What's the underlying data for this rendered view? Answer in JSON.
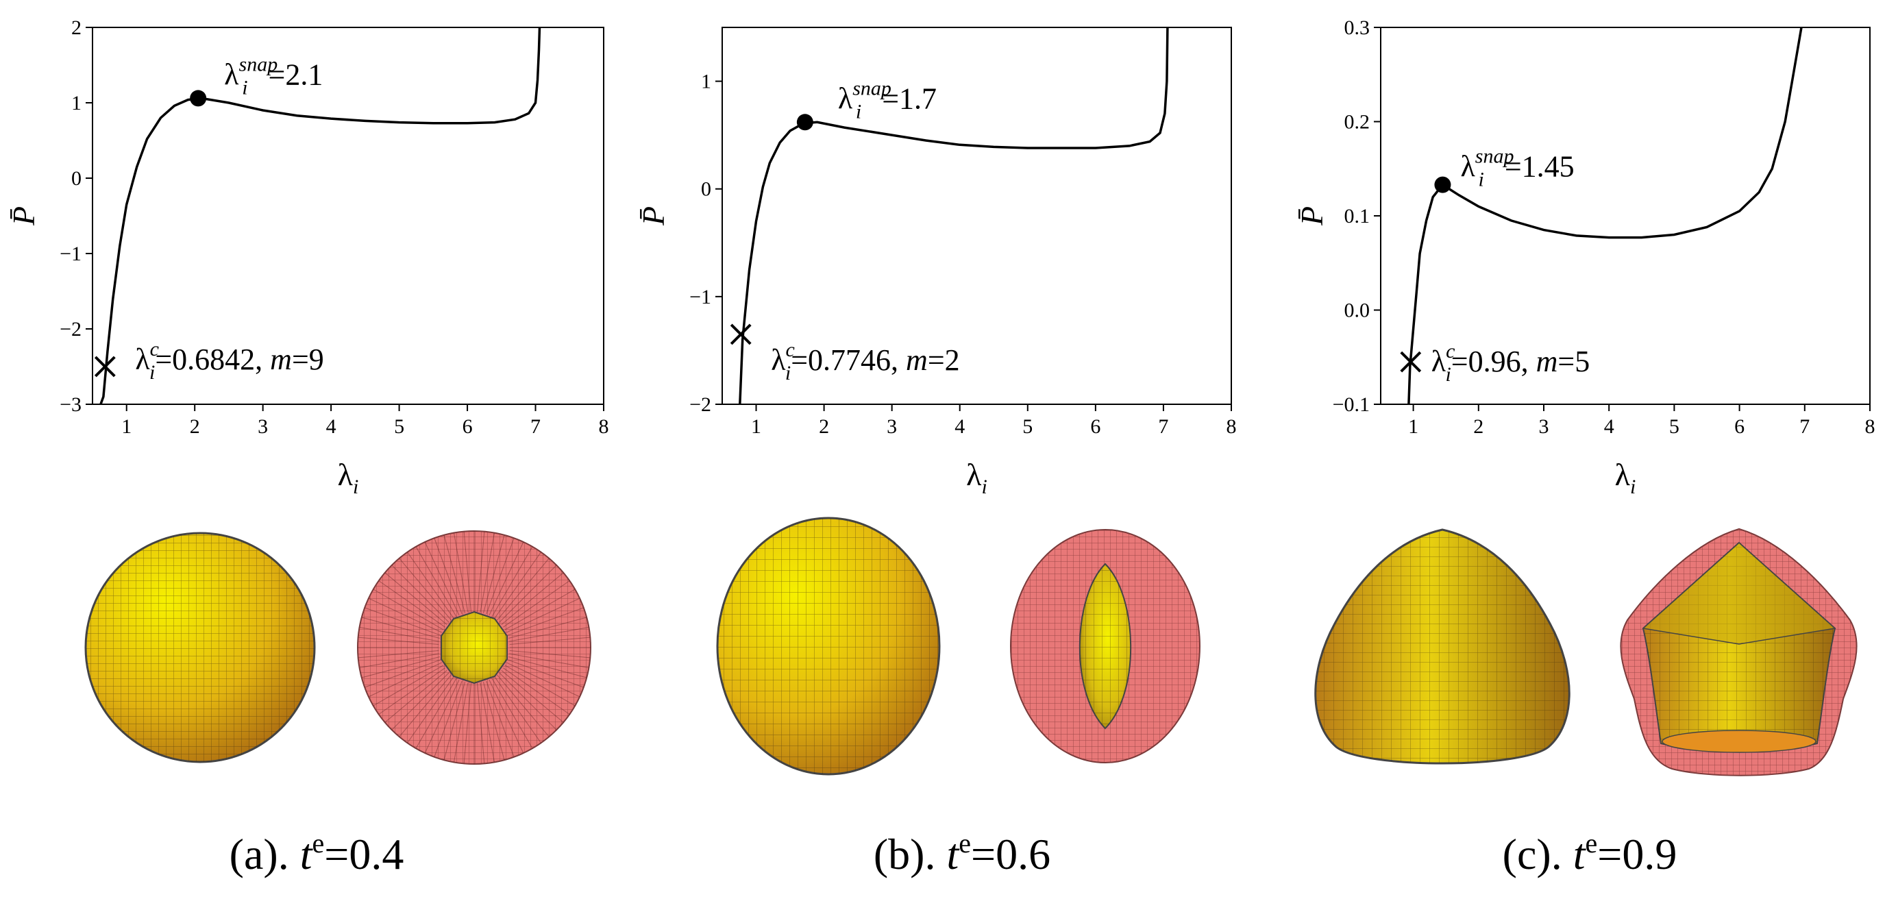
{
  "panels": [
    {
      "caption": {
        "prefix": "(a). ",
        "var": "t",
        "sup": "e",
        "value": "=0.4"
      },
      "chart_data": {
        "type": "line",
        "xlabel": {
          "symbol": "λ",
          "sub": "i"
        },
        "ylabel": "P̄",
        "xlim": [
          0.5,
          8
        ],
        "ylim": [
          -3,
          2
        ],
        "xticks": [
          1,
          2,
          3,
          4,
          5,
          6,
          7,
          8
        ],
        "yticks": [
          -3,
          -2,
          -1,
          0,
          1,
          2
        ],
        "ytick_labels": [
          "−3",
          "−2",
          "−1",
          "0",
          "1",
          "2"
        ],
        "series": [
          {
            "name": "P̄(λi)",
            "points": [
              [
                0.62,
                -3.0
              ],
              [
                0.66,
                -2.9
              ],
              [
                0.72,
                -2.3
              ],
              [
                0.8,
                -1.6
              ],
              [
                0.9,
                -0.9
              ],
              [
                1.0,
                -0.35
              ],
              [
                1.15,
                0.15
              ],
              [
                1.3,
                0.52
              ],
              [
                1.5,
                0.8
              ],
              [
                1.7,
                0.96
              ],
              [
                1.9,
                1.04
              ],
              [
                2.1,
                1.06
              ],
              [
                2.5,
                1.0
              ],
              [
                3.0,
                0.9
              ],
              [
                3.5,
                0.83
              ],
              [
                4.0,
                0.79
              ],
              [
                4.5,
                0.76
              ],
              [
                5.0,
                0.74
              ],
              [
                5.5,
                0.73
              ],
              [
                6.0,
                0.73
              ],
              [
                6.4,
                0.74
              ],
              [
                6.7,
                0.78
              ],
              [
                6.9,
                0.86
              ],
              [
                7.0,
                1.0
              ],
              [
                7.03,
                1.3
              ],
              [
                7.05,
                1.7
              ],
              [
                7.06,
                2.0
              ]
            ]
          }
        ],
        "snap_point": {
          "x": 2.05,
          "y": 1.06,
          "label": {
            "symbol": "λ",
            "sub": "i",
            "sup": "snap",
            "text": "=2.1"
          }
        },
        "critical_point": {
          "x": 0.6842,
          "y": -2.5,
          "label": {
            "symbol": "λ",
            "sub": "i",
            "sup": "c",
            "text": "=0.6842, ",
            "mvar": "m",
            "mtext": "=9"
          }
        }
      }
    },
    {
      "caption": {
        "prefix": "(b). ",
        "var": "t",
        "sup": "e",
        "value": "=0.6"
      },
      "chart_data": {
        "type": "line",
        "xlabel": {
          "symbol": "λ",
          "sub": "i"
        },
        "ylabel": "P̄",
        "xlim": [
          0.5,
          8
        ],
        "ylim": [
          -2,
          1.5
        ],
        "xticks": [
          1,
          2,
          3,
          4,
          5,
          6,
          7,
          8
        ],
        "yticks": [
          -2,
          -1,
          0,
          1
        ],
        "ytick_labels": [
          "−2",
          "−1",
          "0",
          "1"
        ],
        "series": [
          {
            "name": "P̄(λi)",
            "points": [
              [
                0.76,
                -2.0
              ],
              [
                0.8,
                -1.4
              ],
              [
                0.9,
                -0.75
              ],
              [
                1.0,
                -0.3
              ],
              [
                1.1,
                0.02
              ],
              [
                1.2,
                0.24
              ],
              [
                1.35,
                0.43
              ],
              [
                1.5,
                0.54
              ],
              [
                1.7,
                0.61
              ],
              [
                1.9,
                0.62
              ],
              [
                2.3,
                0.57
              ],
              [
                3.0,
                0.5
              ],
              [
                3.5,
                0.45
              ],
              [
                4.0,
                0.41
              ],
              [
                4.5,
                0.39
              ],
              [
                5.0,
                0.38
              ],
              [
                5.5,
                0.38
              ],
              [
                6.0,
                0.38
              ],
              [
                6.5,
                0.4
              ],
              [
                6.8,
                0.44
              ],
              [
                6.95,
                0.52
              ],
              [
                7.02,
                0.7
              ],
              [
                7.05,
                1.0
              ],
              [
                7.06,
                1.5
              ]
            ]
          }
        ],
        "snap_point": {
          "x": 1.72,
          "y": 0.62,
          "label": {
            "symbol": "λ",
            "sub": "i",
            "sup": "snap",
            "text": "=1.7"
          }
        },
        "critical_point": {
          "x": 0.7746,
          "y": -1.35,
          "label": {
            "symbol": "λ",
            "sub": "i",
            "sup": "c",
            "text": "=0.7746, ",
            "mvar": "m",
            "mtext": "=2"
          }
        }
      }
    },
    {
      "caption": {
        "prefix": "(c). ",
        "var": "t",
        "sup": "e",
        "value": "=0.9"
      },
      "chart_data": {
        "type": "line",
        "xlabel": {
          "symbol": "λ",
          "sub": "i"
        },
        "ylabel": "P̄",
        "xlim": [
          0.5,
          8
        ],
        "ylim": [
          -0.1,
          0.3
        ],
        "xticks": [
          1,
          2,
          3,
          4,
          5,
          6,
          7,
          8
        ],
        "yticks": [
          -0.1,
          0.0,
          0.1,
          0.2,
          0.3
        ],
        "ytick_labels": [
          "−0.1",
          "0.0",
          "0.1",
          "0.2",
          "0.3"
        ],
        "series": [
          {
            "name": "P̄(λi)",
            "points": [
              [
                0.93,
                -0.1
              ],
              [
                0.95,
                -0.06
              ],
              [
                1.0,
                -0.02
              ],
              [
                1.05,
                0.02
              ],
              [
                1.1,
                0.06
              ],
              [
                1.2,
                0.095
              ],
              [
                1.3,
                0.12
              ],
              [
                1.45,
                0.133
              ],
              [
                1.7,
                0.122
              ],
              [
                2.0,
                0.11
              ],
              [
                2.5,
                0.095
              ],
              [
                3.0,
                0.085
              ],
              [
                3.5,
                0.079
              ],
              [
                4.0,
                0.077
              ],
              [
                4.5,
                0.077
              ],
              [
                5.0,
                0.08
              ],
              [
                5.5,
                0.088
              ],
              [
                6.0,
                0.105
              ],
              [
                6.3,
                0.125
              ],
              [
                6.5,
                0.15
              ],
              [
                6.7,
                0.2
              ],
              [
                6.8,
                0.24
              ],
              [
                6.9,
                0.28
              ],
              [
                6.95,
                0.3
              ]
            ]
          }
        ],
        "snap_point": {
          "x": 1.45,
          "y": 0.133,
          "label": {
            "symbol": "λ",
            "sub": "i",
            "sup": "snap",
            "text": "=1.45"
          }
        },
        "critical_point": {
          "x": 0.96,
          "y": -0.055,
          "label": {
            "symbol": "λ",
            "sub": "i",
            "sup": "c",
            "text": "=0.96, ",
            "mvar": "m",
            "mtext": "=5"
          }
        }
      }
    }
  ],
  "colors": {
    "curve": "#000000",
    "surface_light": "#f4f000",
    "surface_dark": "#b86a10",
    "section_pink": "#e87878",
    "mesh": "#3a2a10"
  }
}
